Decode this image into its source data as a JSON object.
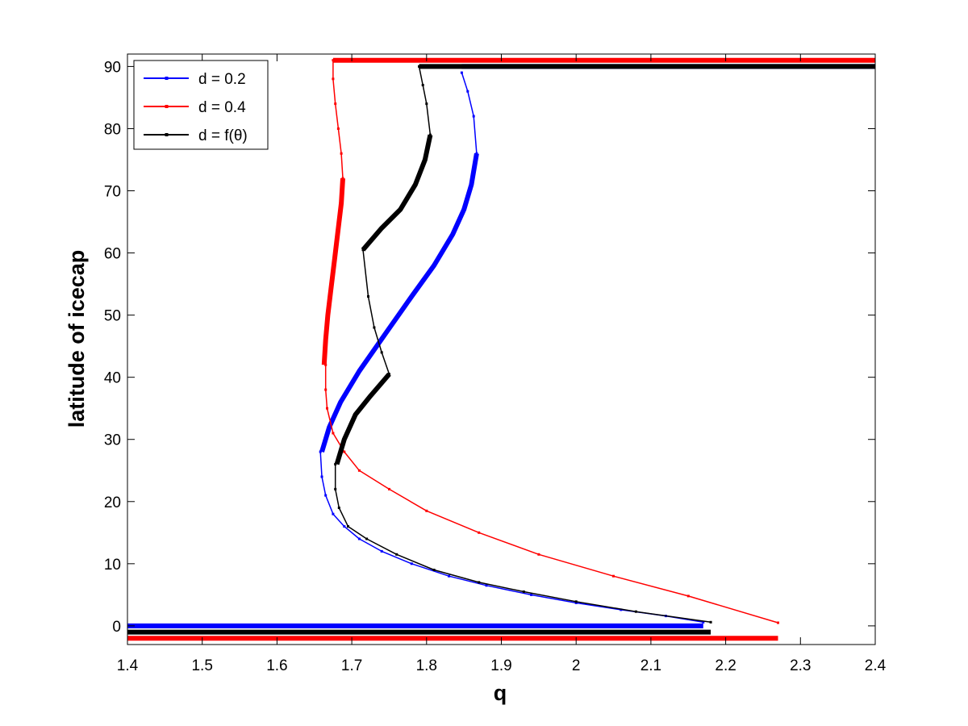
{
  "chart_data": {
    "type": "line",
    "title": "",
    "xlabel": "q",
    "ylabel": "latitude of icecap",
    "xlim": [
      1.4,
      2.4
    ],
    "ylim": [
      -3,
      92
    ],
    "xticks": [
      "1.4",
      "1.5",
      "1.6",
      "1.7",
      "1.8",
      "1.9",
      "2",
      "2.1",
      "2.2",
      "2.3",
      "2.4"
    ],
    "yticks": [
      "0",
      "10",
      "20",
      "30",
      "40",
      "50",
      "60",
      "70",
      "80",
      "90"
    ],
    "grid": false,
    "legend_position": "top-left",
    "series": [
      {
        "name": "d = 0.2",
        "color": "#0000ff",
        "unstable": [
          [
            1.658,
            28.0
          ],
          [
            1.66,
            24.0
          ],
          [
            1.665,
            21.0
          ],
          [
            1.675,
            18.0
          ],
          [
            1.69,
            16.0
          ],
          [
            1.71,
            14.0
          ],
          [
            1.74,
            12.0
          ],
          [
            1.78,
            10.0
          ],
          [
            1.83,
            8.0
          ],
          [
            1.88,
            6.5
          ],
          [
            1.94,
            5.0
          ],
          [
            2.0,
            3.7
          ],
          [
            2.06,
            2.6
          ],
          [
            2.12,
            1.6
          ],
          [
            2.17,
            0.6
          ]
        ],
        "stable": [
          [
            1.66,
            28.0
          ],
          [
            1.67,
            32.0
          ],
          [
            1.685,
            36.0
          ],
          [
            1.71,
            41.0
          ],
          [
            1.745,
            47.0
          ],
          [
            1.78,
            53.0
          ],
          [
            1.81,
            58.0
          ],
          [
            1.835,
            63.0
          ],
          [
            1.85,
            67.0
          ],
          [
            1.86,
            71.0
          ],
          [
            1.867,
            76.0
          ]
        ],
        "unstable_upper": [
          [
            1.867,
            76.0
          ],
          [
            1.863,
            82.0
          ],
          [
            1.855,
            86.0
          ],
          [
            1.847,
            89.0
          ]
        ],
        "warm_branch": {
          "from_q": 1.4,
          "to_q": 2.17,
          "latitude": 0
        },
        "ice_branch": {
          "from_q": 1.847,
          "to_q": 2.4,
          "latitude": 90
        }
      },
      {
        "name": "d = 0.4",
        "color": "#ff0000",
        "unstable": [
          [
            1.665,
            42.0
          ],
          [
            1.665,
            38.0
          ],
          [
            1.667,
            35.0
          ],
          [
            1.675,
            31.0
          ],
          [
            1.69,
            28.0
          ],
          [
            1.71,
            25.0
          ],
          [
            1.75,
            22.0
          ],
          [
            1.8,
            18.5
          ],
          [
            1.87,
            15.0
          ],
          [
            1.95,
            11.5
          ],
          [
            2.05,
            8.0
          ],
          [
            2.15,
            4.8
          ],
          [
            2.27,
            0.5
          ]
        ],
        "stable": [
          [
            1.663,
            42.0
          ],
          [
            1.665,
            46.0
          ],
          [
            1.668,
            50.0
          ],
          [
            1.672,
            54.0
          ],
          [
            1.677,
            59.0
          ],
          [
            1.682,
            64.0
          ],
          [
            1.686,
            68.0
          ],
          [
            1.688,
            72.0
          ]
        ],
        "unstable_upper": [
          [
            1.688,
            72.0
          ],
          [
            1.686,
            76.0
          ],
          [
            1.682,
            80.0
          ],
          [
            1.678,
            84.0
          ],
          [
            1.675,
            88.0
          ],
          [
            1.675,
            91.0
          ]
        ],
        "warm_branch": {
          "from_q": 1.4,
          "to_q": 2.27,
          "latitude": -2
        },
        "ice_branch": {
          "from_q": 1.675,
          "to_q": 2.4,
          "latitude": 91
        }
      },
      {
        "name": "d = f(θ)",
        "color": "#000000",
        "unstable": [
          [
            1.678,
            26.0
          ],
          [
            1.678,
            22.0
          ],
          [
            1.683,
            19.0
          ],
          [
            1.695,
            16.0
          ],
          [
            1.72,
            14.0
          ],
          [
            1.76,
            11.5
          ],
          [
            1.81,
            9.0
          ],
          [
            1.87,
            7.0
          ],
          [
            1.93,
            5.5
          ],
          [
            2.0,
            3.9
          ],
          [
            2.08,
            2.3
          ],
          [
            2.18,
            0.6
          ]
        ],
        "stable": [
          [
            1.68,
            26.0
          ],
          [
            1.69,
            30.0
          ],
          [
            1.705,
            34.0
          ],
          [
            1.725,
            37.0
          ],
          [
            1.75,
            40.5
          ]
        ],
        "kink_branch": [
          [
            1.75,
            40.5
          ],
          [
            1.74,
            44.0
          ],
          [
            1.73,
            48.0
          ],
          [
            1.722,
            53.0
          ],
          [
            1.715,
            60.5
          ]
        ],
        "stable_upper": [
          [
            1.715,
            60.5
          ],
          [
            1.74,
            64.0
          ],
          [
            1.765,
            67.0
          ],
          [
            1.785,
            71.0
          ],
          [
            1.798,
            75.0
          ],
          [
            1.805,
            79.0
          ]
        ],
        "unstable_upper": [
          [
            1.805,
            79.0
          ],
          [
            1.8,
            84.0
          ],
          [
            1.795,
            87.0
          ],
          [
            1.79,
            90.0
          ]
        ],
        "warm_branch": {
          "from_q": 1.4,
          "to_q": 2.18,
          "latitude": -1
        },
        "ice_branch": {
          "from_q": 1.79,
          "to_q": 2.4,
          "latitude": 90
        }
      }
    ]
  }
}
